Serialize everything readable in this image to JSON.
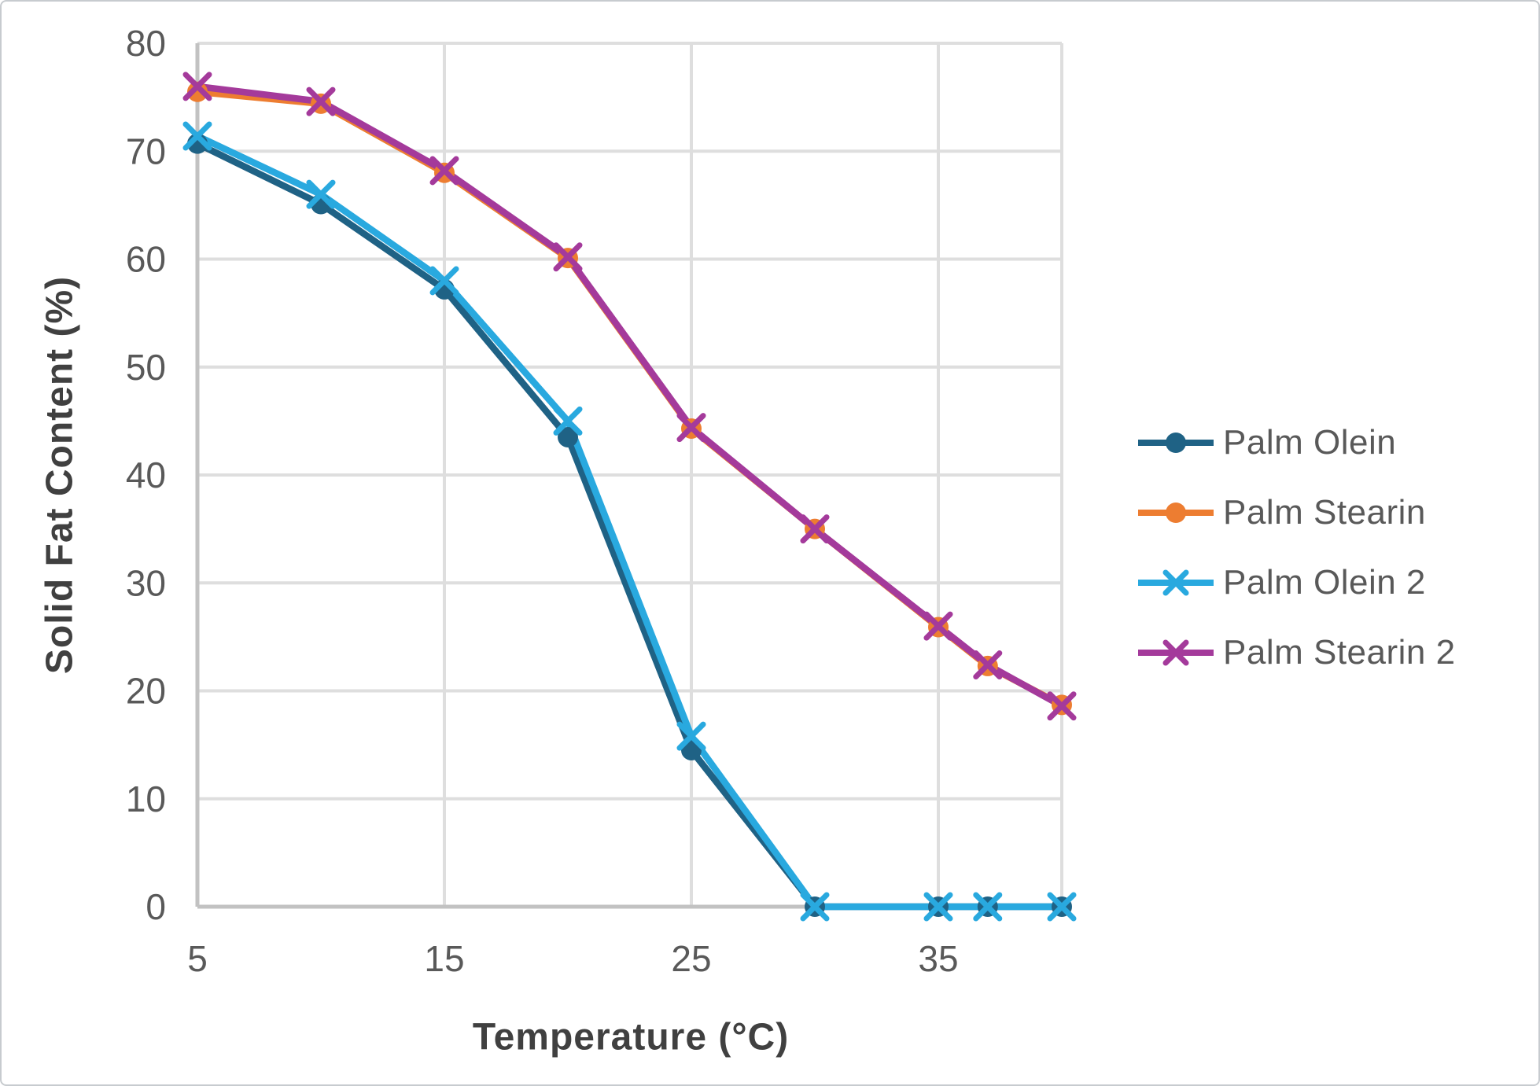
{
  "chart_data": {
    "type": "line",
    "title": "",
    "xlabel": "Temperature (°C)",
    "ylabel": "Solid Fat Content (%)",
    "x": [
      5,
      10,
      15,
      20,
      25,
      30,
      35,
      37,
      40
    ],
    "x_ticks": [
      5,
      15,
      25,
      35
    ],
    "x_gridlines": [
      15,
      25,
      35
    ],
    "xlim": [
      5,
      40
    ],
    "y_ticks": [
      0,
      10,
      20,
      30,
      40,
      50,
      60,
      70,
      80
    ],
    "ylim": [
      0,
      80
    ],
    "grid": true,
    "legend_position": "right",
    "series": [
      {
        "name": "Palm Olein",
        "marker": "circle",
        "color": "#1F6285",
        "values": [
          70.7,
          65.1,
          57.2,
          43.5,
          14.5,
          0,
          0,
          0,
          0
        ]
      },
      {
        "name": "Palm Stearin",
        "marker": "circle",
        "color": "#ED7D31",
        "values": [
          75.5,
          74.4,
          68.0,
          60.1,
          44.3,
          35.0,
          25.9,
          22.3,
          18.7
        ]
      },
      {
        "name": "Palm Olein 2",
        "marker": "x",
        "color": "#29A9DF",
        "values": [
          71.4,
          66.0,
          58.0,
          45.0,
          15.8,
          0,
          0,
          0,
          0
        ]
      },
      {
        "name": "Palm Stearin 2",
        "marker": "x",
        "color": "#A43A9B",
        "values": [
          76.0,
          74.6,
          68.2,
          60.2,
          44.4,
          35.0,
          26.0,
          22.4,
          18.6
        ]
      }
    ],
    "style": {
      "grid_color": "#dedede",
      "axis_color": "#c2c2c2",
      "tick_text_color": "#595959",
      "title_text_color": "#404040"
    }
  }
}
